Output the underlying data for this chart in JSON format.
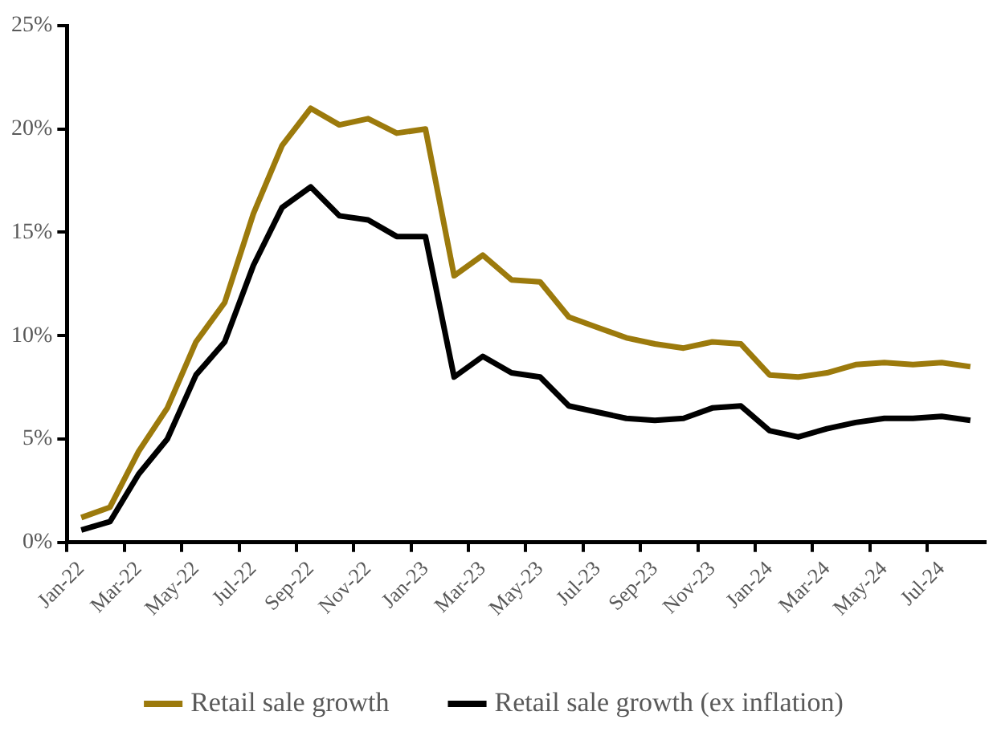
{
  "chart_data": {
    "type": "line",
    "categories": [
      "Jan-22",
      null,
      "Mar-22",
      null,
      "May-22",
      null,
      "Jul-22",
      null,
      "Sep-22",
      null,
      "Nov-22",
      null,
      "Jan-23",
      null,
      "Mar-23",
      null,
      "May-23",
      null,
      "Jul-23",
      null,
      "Sep-23",
      null,
      "Nov-23",
      null,
      "Jan-24",
      null,
      "Mar-24",
      null,
      "May-24",
      null,
      "Jul-24",
      null
    ],
    "series": [
      {
        "name": "Retail sale growth",
        "color": "#9c7a0c",
        "values": [
          1.2,
          1.7,
          4.4,
          6.5,
          9.7,
          11.6,
          15.9,
          19.2,
          21.0,
          20.2,
          20.5,
          19.8,
          20.0,
          12.9,
          13.9,
          12.7,
          12.6,
          10.9,
          10.4,
          9.9,
          9.6,
          9.4,
          9.7,
          9.6,
          8.1,
          8.0,
          8.2,
          8.6,
          8.7,
          8.6,
          8.7,
          8.5
        ]
      },
      {
        "name": "Retail sale growth (ex inflation)",
        "color": "#000000",
        "values": [
          0.6,
          1.0,
          3.3,
          5.0,
          8.1,
          9.7,
          13.4,
          16.2,
          17.2,
          15.8,
          15.6,
          14.8,
          14.8,
          8.0,
          9.0,
          8.2,
          8.0,
          6.6,
          6.3,
          6.0,
          5.9,
          6.0,
          6.5,
          6.6,
          5.4,
          5.1,
          5.5,
          5.8,
          6.0,
          6.0,
          6.1,
          5.9
        ]
      }
    ],
    "ylim": [
      0,
      25
    ],
    "yticks": [
      {
        "value": 0,
        "label": "0%"
      },
      {
        "value": 5,
        "label": "5%"
      },
      {
        "value": 10,
        "label": "10%"
      },
      {
        "value": 15,
        "label": "15%"
      },
      {
        "value": 20,
        "label": "20%"
      },
      {
        "value": 25,
        "label": "25%"
      }
    ],
    "grid": false,
    "legend": "bottom",
    "marker": "none",
    "line_style": "solid"
  }
}
